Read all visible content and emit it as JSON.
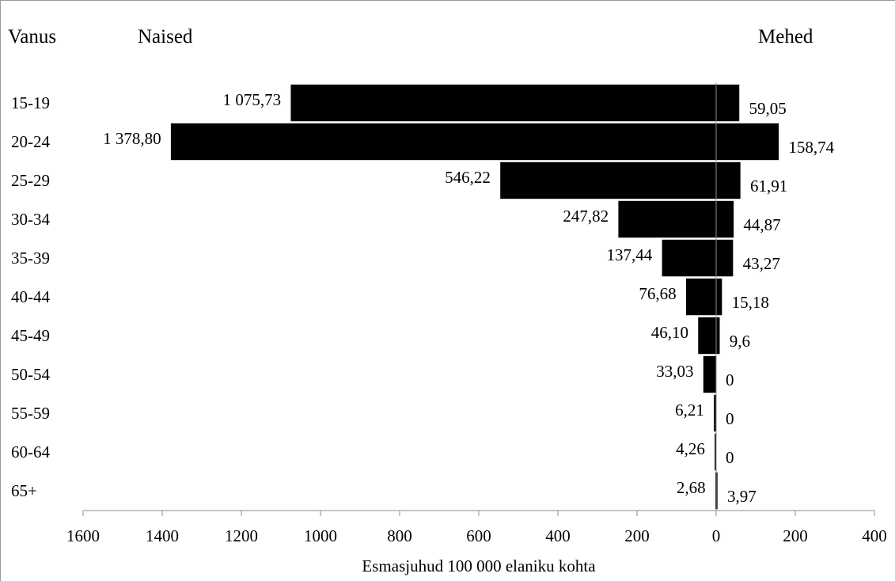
{
  "chart_data": {
    "type": "bar",
    "orientation": "horizontal-diverging",
    "categories_label": "Vanus",
    "categories": [
      "15-19",
      "20-24",
      "25-29",
      "30-34",
      "35-39",
      "40-44",
      "45-49",
      "50-54",
      "55-59",
      "60-64",
      "65+"
    ],
    "series": [
      {
        "name": "Naised",
        "side": "left",
        "values": [
          1075.73,
          1378.8,
          546.22,
          247.82,
          137.44,
          76.68,
          46.1,
          33.03,
          6.21,
          4.26,
          2.68
        ],
        "labels": [
          "1 075,73",
          "1 378,80",
          "546,22",
          "247,82",
          "137,44",
          "76,68",
          "46,10",
          "33,03",
          "6,21",
          "4,26",
          "2,68"
        ]
      },
      {
        "name": "Mehed",
        "side": "right",
        "values": [
          59.05,
          158.74,
          61.91,
          44.87,
          43.27,
          15.18,
          9.6,
          0,
          0,
          0,
          3.97
        ],
        "labels": [
          "59,05",
          "158,74",
          "61,91",
          "44,87",
          "43,27",
          "15,18",
          "9,6",
          "0",
          "0",
          "0",
          "3,97"
        ]
      }
    ],
    "xlabel": "Esmasjuhud 100 000 elaniku kohta",
    "xlim": [
      -1600,
      400
    ],
    "xticks": [
      -1600,
      -1400,
      -1200,
      -1000,
      -800,
      -600,
      -400,
      -200,
      0,
      200,
      400
    ],
    "xtick_labels": [
      "1600",
      "1400",
      "1200",
      "1000",
      "800",
      "600",
      "400",
      "200",
      "0",
      "200",
      "400"
    ],
    "bar_color": "#000000",
    "grid": false
  }
}
